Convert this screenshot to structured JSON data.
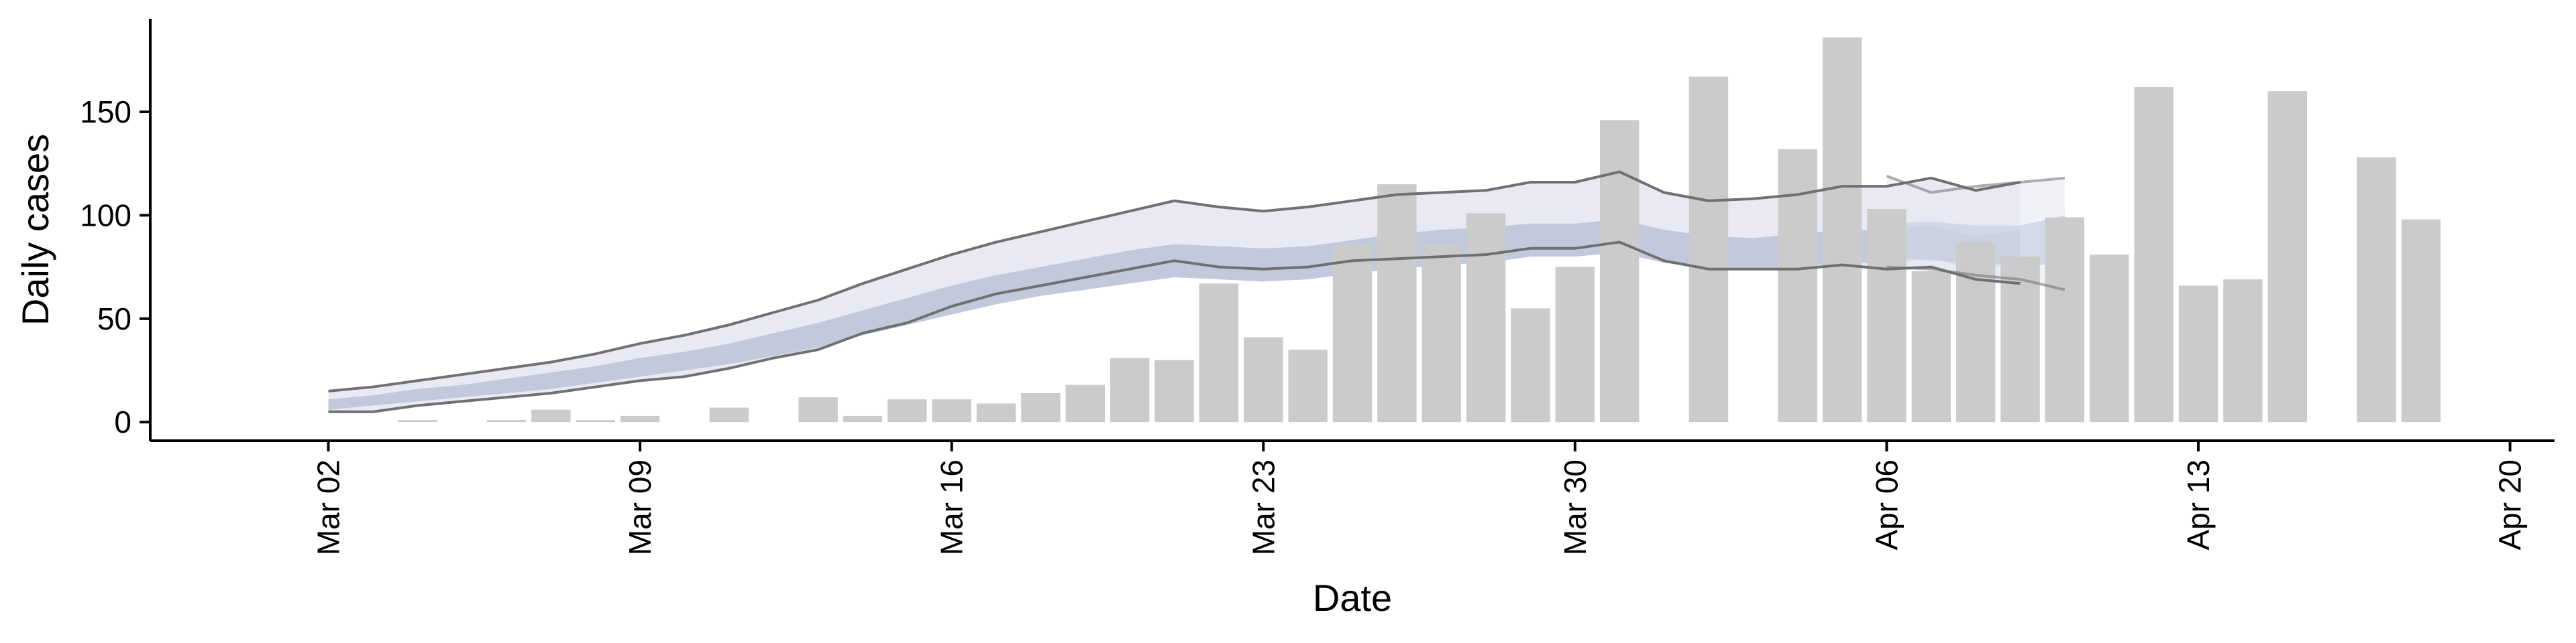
{
  "chart_data": {
    "type": "bar",
    "xlabel": "Date",
    "ylabel": "Daily cases",
    "x_tick_labels": [
      "Mar 02",
      "Mar 09",
      "Mar 16",
      "Mar 23",
      "Mar 30",
      "Apr 06",
      "Apr 13",
      "Apr 20"
    ],
    "y_tick_labels": [
      "0",
      "50",
      "100",
      "150"
    ],
    "y_ticks": [
      0,
      50,
      100,
      150
    ],
    "xlim": [
      "2020-02-27",
      "2020-04-21"
    ],
    "ylim": [
      -9,
      195
    ],
    "bars": {
      "dates": [
        "2020-03-03",
        "2020-03-04",
        "2020-03-05",
        "2020-03-06",
        "2020-03-07",
        "2020-03-08",
        "2020-03-09",
        "2020-03-10",
        "2020-03-11",
        "2020-03-12",
        "2020-03-13",
        "2020-03-14",
        "2020-03-15",
        "2020-03-16",
        "2020-03-17",
        "2020-03-18",
        "2020-03-19",
        "2020-03-20",
        "2020-03-21",
        "2020-03-22",
        "2020-03-23",
        "2020-03-24",
        "2020-03-25",
        "2020-03-26",
        "2020-03-27",
        "2020-03-28",
        "2020-03-29",
        "2020-03-30",
        "2020-03-31",
        "2020-04-01",
        "2020-04-02",
        "2020-04-03",
        "2020-04-04",
        "2020-04-05",
        "2020-04-06",
        "2020-04-07",
        "2020-04-08",
        "2020-04-09",
        "2020-04-10",
        "2020-04-11",
        "2020-04-12",
        "2020-04-13",
        "2020-04-14",
        "2020-04-15",
        "2020-04-16",
        "2020-04-17",
        "2020-04-18"
      ],
      "values": [
        0,
        1,
        0,
        1,
        6,
        1,
        3,
        0,
        7,
        0,
        12,
        3,
        11,
        11,
        9,
        14,
        18,
        31,
        30,
        67,
        41,
        35,
        86,
        115,
        86,
        101,
        55,
        75,
        146,
        0,
        167,
        0,
        132,
        186,
        103,
        73,
        87,
        80,
        99,
        81,
        162,
        66,
        69,
        160,
        0,
        128,
        98
      ]
    },
    "bar_color": "#cbcbcb",
    "series": [
      {
        "name": "",
        "dates": [
          "2020-03-02",
          "2020-03-03",
          "2020-03-04",
          "2020-03-05",
          "2020-03-06",
          "2020-03-07",
          "2020-03-08",
          "2020-03-09",
          "2020-03-10",
          "2020-03-11",
          "2020-03-12",
          "2020-03-13",
          "2020-03-14",
          "2020-03-15",
          "2020-03-16",
          "2020-03-17",
          "2020-03-18",
          "2020-03-19",
          "2020-03-20",
          "2020-03-21",
          "2020-03-22",
          "2020-03-23",
          "2020-03-24",
          "2020-03-25",
          "2020-03-26",
          "2020-03-27",
          "2020-03-28",
          "2020-03-29",
          "2020-03-30",
          "2020-03-31",
          "2020-04-01",
          "2020-04-02",
          "2020-04-03",
          "2020-04-04",
          "2020-04-05",
          "2020-04-06",
          "2020-04-07",
          "2020-04-08",
          "2020-04-09"
        ],
        "upper": [
          15,
          17,
          20,
          23,
          26,
          29,
          33,
          38,
          42,
          47,
          53,
          59,
          67,
          74,
          81,
          87,
          92,
          97,
          102,
          107,
          104,
          102,
          104,
          107,
          110,
          111,
          112,
          116,
          116,
          121,
          111,
          107,
          108,
          110,
          114,
          114,
          118,
          112,
          116
        ],
        "lower": [
          5,
          5,
          8,
          10,
          12,
          14,
          17,
          20,
          22,
          26,
          31,
          35,
          43,
          48,
          56,
          62,
          66,
          70,
          74,
          78,
          75,
          74,
          75,
          78,
          79,
          80,
          81,
          84,
          84,
          87,
          78,
          74,
          74,
          74,
          76,
          74,
          75,
          69,
          67
        ],
        "inner_upper": [
          11,
          13,
          16,
          18,
          21,
          24,
          27,
          31,
          34,
          38,
          43,
          48,
          54,
          60,
          66,
          71,
          75,
          79,
          83,
          86,
          85,
          84,
          85,
          88,
          91,
          93,
          94,
          96,
          96,
          98,
          93,
          90,
          89,
          91,
          93,
          93,
          95,
          90,
          93
        ],
        "inner_lower": [
          6,
          8,
          10,
          12,
          14,
          16,
          19,
          22,
          25,
          28,
          32,
          36,
          42,
          47,
          52,
          57,
          61,
          64,
          67,
          70,
          69,
          68,
          69,
          72,
          74,
          76,
          77,
          80,
          80,
          82,
          77,
          74,
          74,
          75,
          77,
          77,
          79,
          74,
          77
        ]
      },
      {
        "name": "",
        "dates": [
          "2020-04-06",
          "2020-04-07",
          "2020-04-08",
          "2020-04-09",
          "2020-04-10"
        ],
        "upper": [
          119,
          111,
          114,
          116,
          118
        ],
        "lower": [
          75,
          74,
          71,
          69,
          64
        ],
        "inner_upper": [
          96,
          97,
          95,
          95,
          100
        ],
        "inner_lower": [
          80,
          78,
          77,
          76,
          76
        ]
      }
    ],
    "band_color_outer": "#e8e9f2",
    "band_color_inner": "#c3c9dd",
    "line_color": "#707070",
    "grid": false,
    "legend": "none"
  }
}
